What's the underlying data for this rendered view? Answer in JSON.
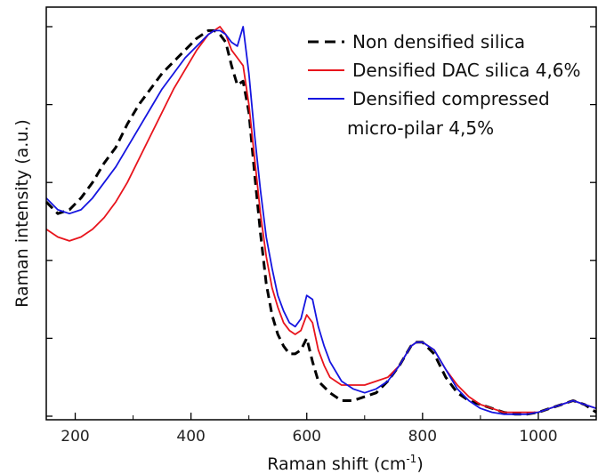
{
  "chart_data": {
    "type": "line",
    "title": "",
    "xlabel": "Raman shift (cm",
    "xlabel_sup": "-1",
    "xlabel_close": ")",
    "ylabel": "Raman intensity (a.u.)",
    "xlim": [
      150,
      1100
    ],
    "ylim": [
      0,
      1.0
    ],
    "xticks": [
      200,
      400,
      600,
      800,
      1000
    ],
    "y_ticklabels_shown": false,
    "grid": false,
    "legend_position": "top-right",
    "series": [
      {
        "name": "Non densified silica",
        "color": "#000000",
        "style": "dashed",
        "x": [
          150,
          170,
          190,
          210,
          230,
          250,
          270,
          290,
          310,
          330,
          350,
          370,
          390,
          410,
          420,
          430,
          440,
          450,
          460,
          470,
          480,
          490,
          500,
          510,
          520,
          530,
          540,
          550,
          560,
          570,
          580,
          590,
          600,
          610,
          620,
          640,
          660,
          680,
          700,
          720,
          740,
          760,
          780,
          790,
          800,
          820,
          840,
          860,
          880,
          900,
          920,
          940,
          960,
          980,
          1000,
          1020,
          1040,
          1060,
          1080,
          1100
        ],
        "y": [
          0.55,
          0.52,
          0.53,
          0.56,
          0.6,
          0.65,
          0.69,
          0.75,
          0.8,
          0.84,
          0.88,
          0.91,
          0.94,
          0.97,
          0.98,
          0.99,
          0.99,
          0.98,
          0.96,
          0.9,
          0.85,
          0.86,
          0.78,
          0.62,
          0.47,
          0.34,
          0.26,
          0.21,
          0.18,
          0.16,
          0.16,
          0.17,
          0.2,
          0.14,
          0.09,
          0.06,
          0.04,
          0.04,
          0.05,
          0.06,
          0.09,
          0.13,
          0.18,
          0.19,
          0.19,
          0.16,
          0.1,
          0.06,
          0.04,
          0.03,
          0.02,
          0.01,
          0.005,
          0.005,
          0.01,
          0.02,
          0.03,
          0.04,
          0.03,
          0.01
        ]
      },
      {
        "name": "Densified DAC silica 4,6%",
        "color": "#e8141c",
        "style": "solid",
        "x": [
          150,
          170,
          190,
          210,
          230,
          250,
          270,
          290,
          310,
          330,
          350,
          370,
          390,
          410,
          430,
          440,
          450,
          460,
          470,
          480,
          490,
          500,
          510,
          520,
          530,
          540,
          550,
          560,
          570,
          580,
          590,
          600,
          610,
          620,
          630,
          640,
          660,
          680,
          700,
          720,
          740,
          760,
          780,
          790,
          800,
          820,
          840,
          860,
          880,
          900,
          920,
          940,
          960,
          980,
          1000,
          1020,
          1040,
          1060,
          1080,
          1100
        ],
        "y": [
          0.48,
          0.46,
          0.45,
          0.46,
          0.48,
          0.51,
          0.55,
          0.6,
          0.66,
          0.72,
          0.78,
          0.84,
          0.89,
          0.94,
          0.98,
          0.99,
          1.0,
          0.98,
          0.94,
          0.92,
          0.9,
          0.8,
          0.66,
          0.52,
          0.41,
          0.33,
          0.28,
          0.24,
          0.22,
          0.21,
          0.22,
          0.26,
          0.24,
          0.17,
          0.13,
          0.1,
          0.08,
          0.08,
          0.08,
          0.09,
          0.1,
          0.13,
          0.18,
          0.19,
          0.19,
          0.17,
          0.12,
          0.08,
          0.05,
          0.03,
          0.02,
          0.01,
          0.01,
          0.01,
          0.01,
          0.02,
          0.03,
          0.04,
          0.03,
          0.02
        ]
      },
      {
        "name": "Densified compressed micro-pilar 4,5%",
        "legend_line2": "micro-pilar 4,5%",
        "color": "#1515e0",
        "style": "solid",
        "x": [
          150,
          170,
          190,
          210,
          230,
          250,
          270,
          290,
          310,
          330,
          350,
          370,
          390,
          410,
          430,
          440,
          450,
          460,
          470,
          480,
          490,
          500,
          510,
          520,
          530,
          540,
          550,
          560,
          570,
          580,
          590,
          600,
          610,
          620,
          630,
          640,
          660,
          680,
          700,
          720,
          740,
          760,
          780,
          790,
          800,
          820,
          840,
          860,
          880,
          900,
          920,
          940,
          960,
          980,
          1000,
          1020,
          1040,
          1060,
          1080,
          1100
        ],
        "y": [
          0.56,
          0.53,
          0.52,
          0.53,
          0.56,
          0.6,
          0.64,
          0.69,
          0.74,
          0.79,
          0.84,
          0.88,
          0.92,
          0.95,
          0.98,
          0.99,
          0.99,
          0.98,
          0.96,
          0.95,
          1.0,
          0.88,
          0.72,
          0.58,
          0.46,
          0.38,
          0.31,
          0.27,
          0.24,
          0.23,
          0.25,
          0.31,
          0.3,
          0.23,
          0.18,
          0.14,
          0.09,
          0.07,
          0.06,
          0.07,
          0.09,
          0.13,
          0.18,
          0.19,
          0.19,
          0.17,
          0.12,
          0.07,
          0.04,
          0.02,
          0.01,
          0.005,
          0.005,
          0.005,
          0.01,
          0.02,
          0.03,
          0.04,
          0.03,
          0.02
        ]
      }
    ]
  }
}
